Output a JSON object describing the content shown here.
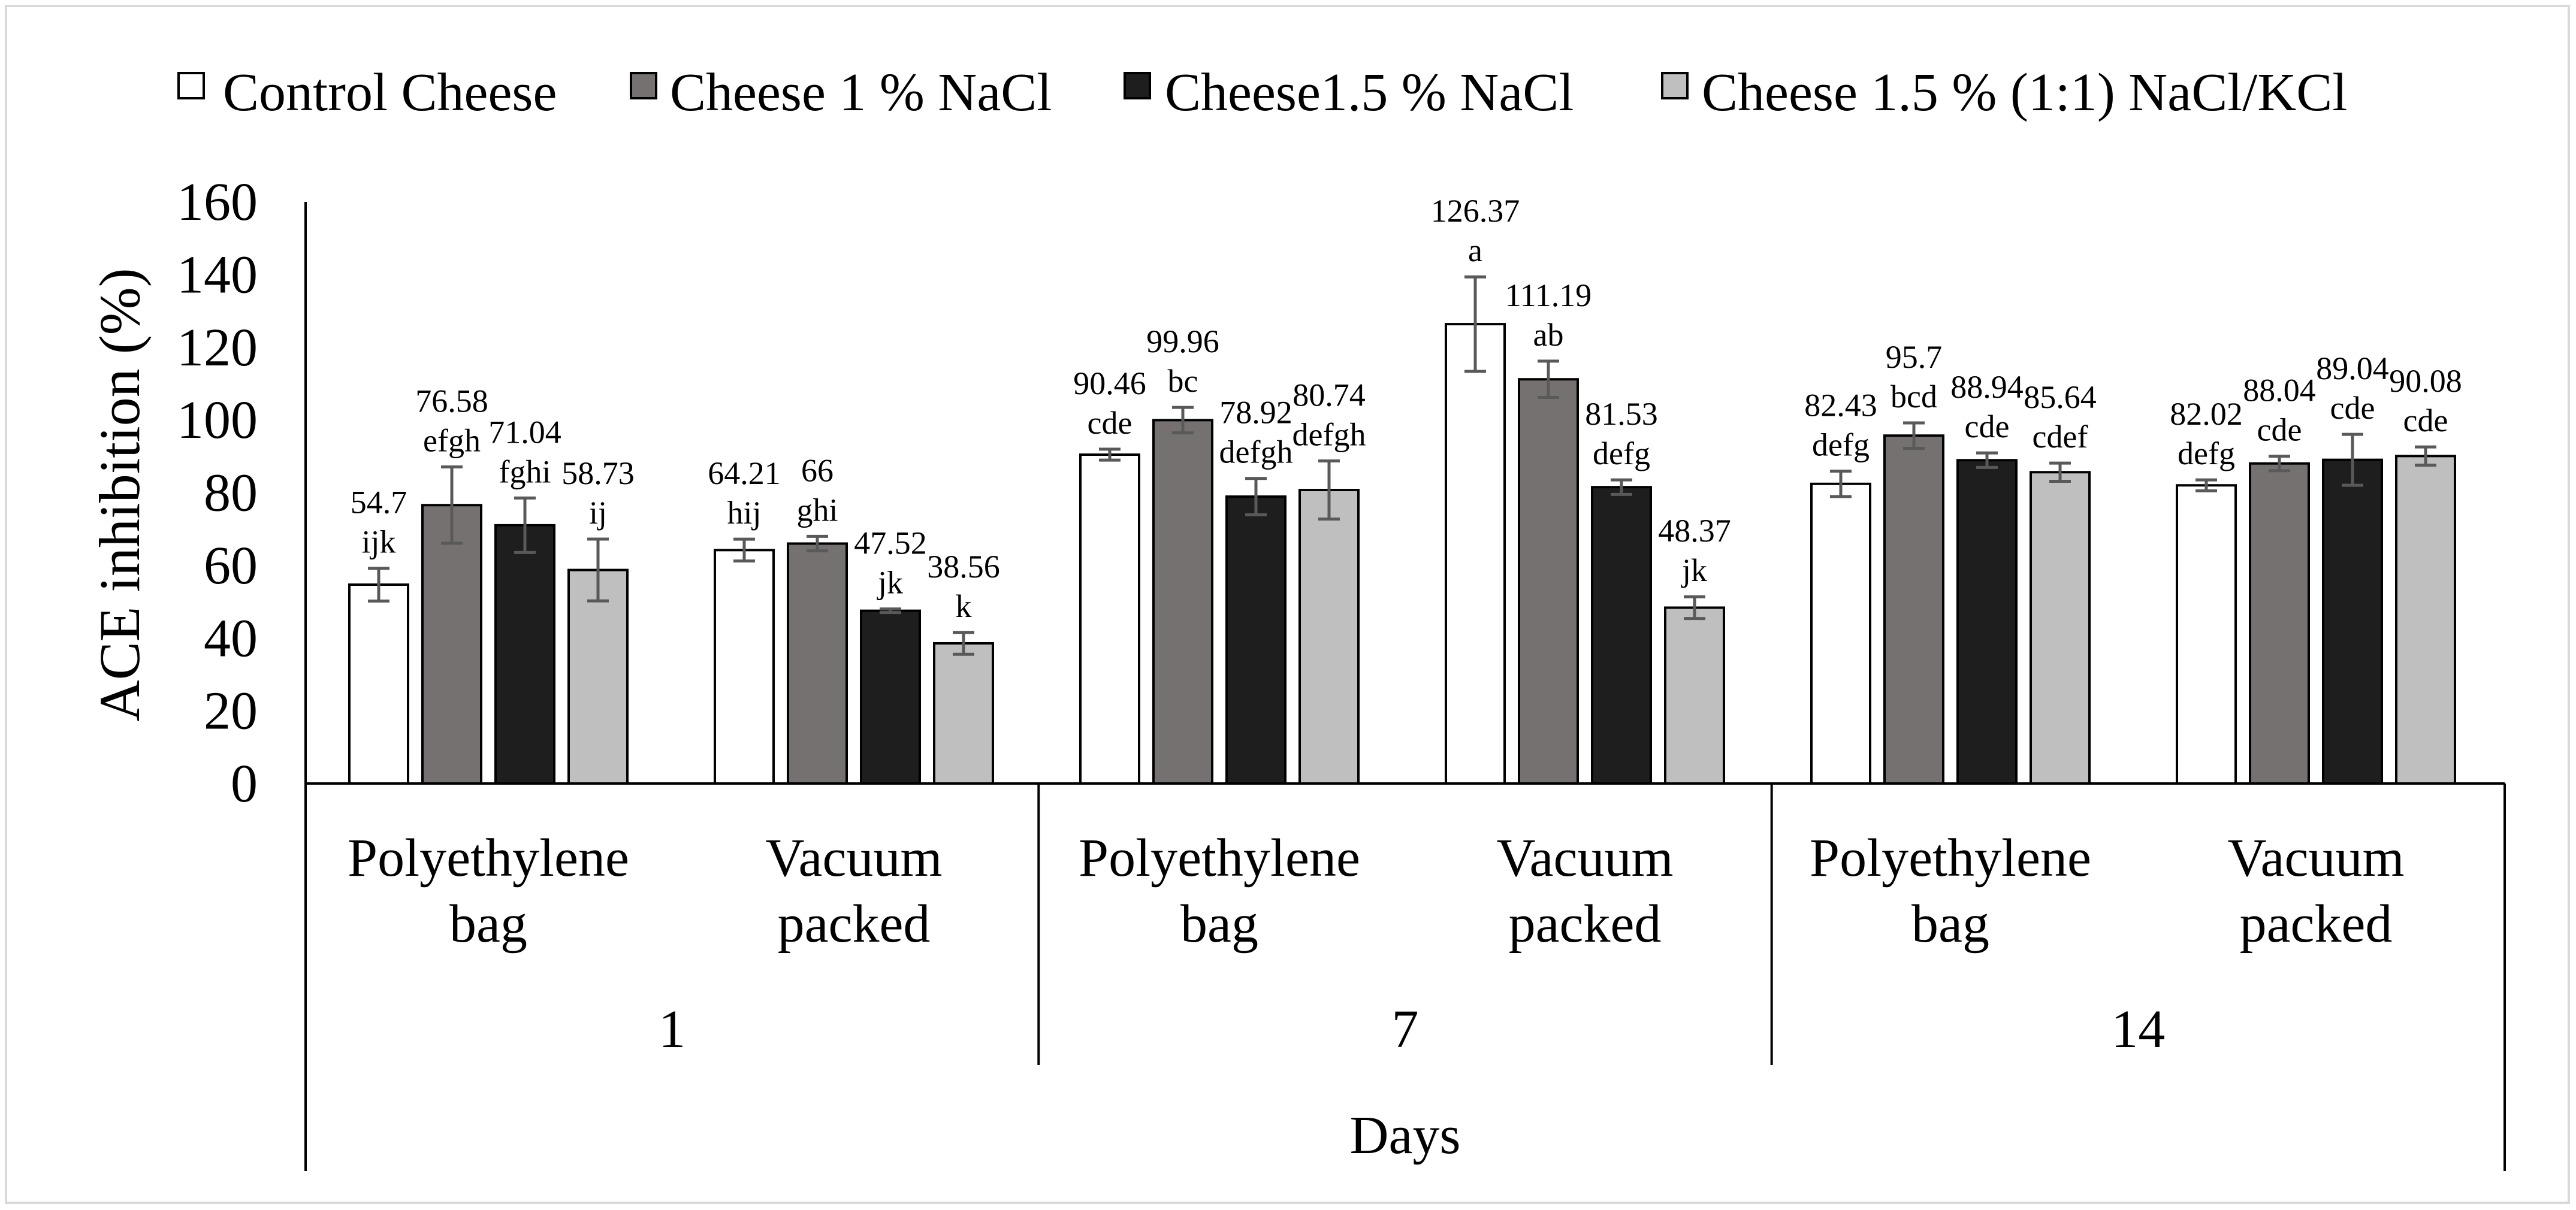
{
  "chart_data": {
    "type": "bar",
    "ylabel": "ACE inhibition (%)",
    "xlabel": "Days",
    "ylim": [
      0,
      160
    ],
    "yticks": [
      "0",
      "20",
      "40",
      "60",
      "80",
      "100",
      "120",
      "140",
      "160"
    ],
    "days": [
      "1",
      "7",
      "14"
    ],
    "packaging": [
      [
        "Polyethylene",
        "bag"
      ],
      [
        "Vacuum",
        "packed"
      ]
    ],
    "series": [
      {
        "name": "Control Cheese",
        "color": "#ffffff",
        "values": [
          54.7,
          64.21,
          90.46,
          126.37,
          82.43,
          82.02
        ],
        "errors": [
          4.5,
          3.0,
          1.5,
          13.0,
          3.5,
          1.5
        ],
        "value_labels": [
          "54.7",
          "64.21",
          "90.46",
          "126.37",
          "82.43",
          "82.02"
        ],
        "sig_labels": [
          "ijk",
          "hij",
          "cde",
          "a",
          "defg",
          "defg"
        ]
      },
      {
        "name": "Cheese 1 % NaCl",
        "color": "#767171",
        "values": [
          76.58,
          66,
          99.96,
          111.19,
          95.7,
          88.04
        ],
        "errors": [
          10.5,
          2.0,
          3.5,
          5.0,
          3.5,
          2.0
        ],
        "value_labels": [
          "76.58",
          "66",
          "99.96",
          "111.19",
          "95.7",
          "88.04"
        ],
        "sig_labels": [
          "efgh",
          "ghi",
          "bc",
          "ab",
          "bcd",
          "cde"
        ]
      },
      {
        "name": "Cheese1.5 % NaCl",
        "color": "#1e1e1e",
        "values": [
          71.04,
          47.52,
          78.92,
          81.53,
          88.94,
          89.04
        ],
        "errors": [
          7.5,
          0.5,
          5.0,
          2.0,
          2.0,
          7.0
        ],
        "value_labels": [
          "71.04",
          "47.52",
          "78.92",
          "81.53",
          "88.94",
          "89.04"
        ],
        "sig_labels": [
          "fghi",
          "jk",
          "defgh",
          "defg",
          "cde",
          "cde"
        ]
      },
      {
        "name": "Cheese 1.5 % (1:1) NaCl/KCl",
        "color": "#bfbfbf",
        "values": [
          58.73,
          38.56,
          80.74,
          48.37,
          85.64,
          90.08
        ],
        "errors": [
          8.5,
          3.0,
          8.0,
          3.0,
          2.5,
          2.5
        ],
        "value_labels": [
          "58.73",
          "38.56",
          "80.74",
          "48.37",
          "85.64",
          "90.08"
        ],
        "sig_labels": [
          "ij",
          "k",
          "defgh",
          "jk",
          "cdef",
          "cde"
        ]
      }
    ]
  }
}
